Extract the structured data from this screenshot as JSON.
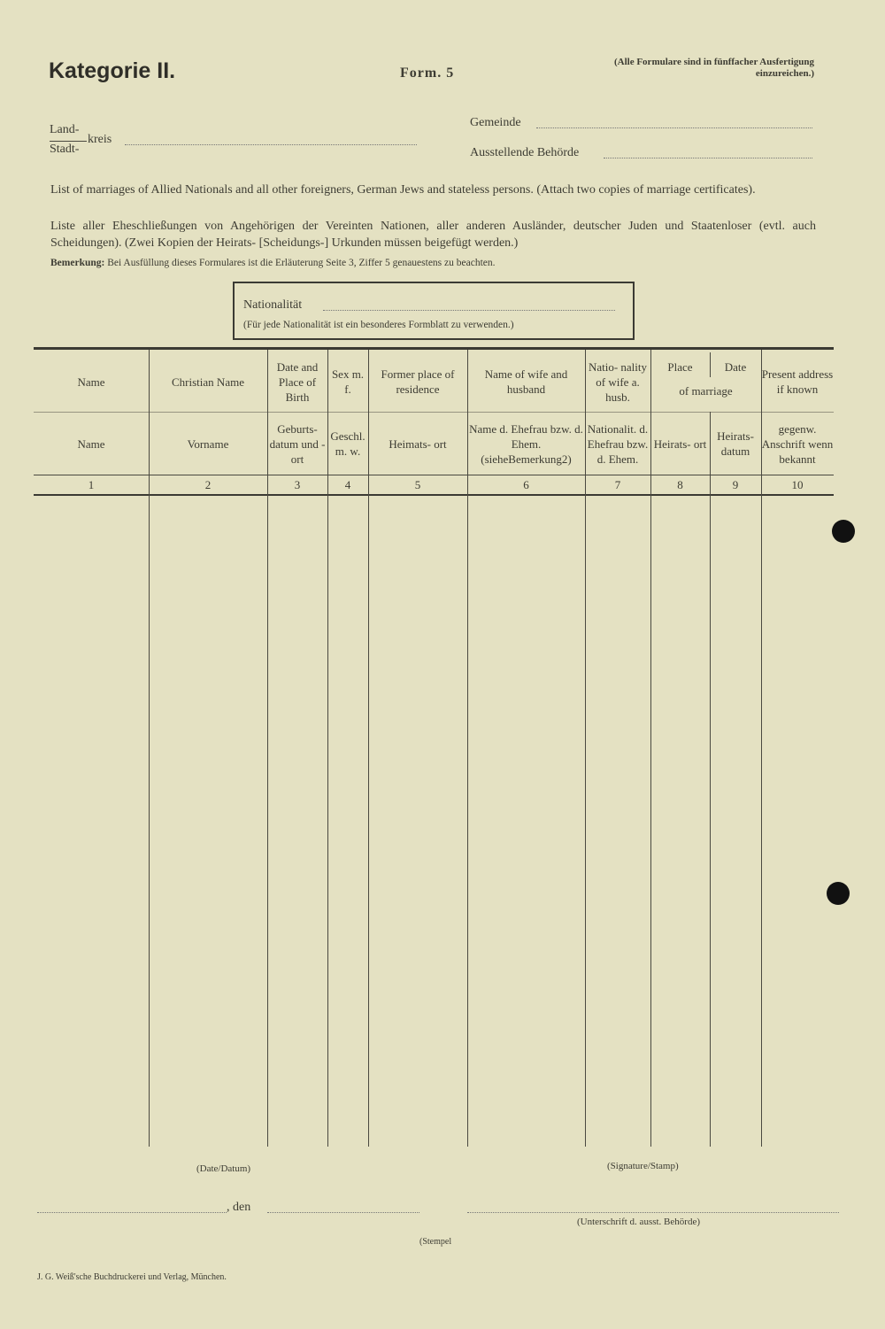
{
  "header": {
    "title": "Kategorie II.",
    "form": "Form. 5",
    "note": "(Alle Formulare sind in fünffacher Ausfertigung einzureichen.)",
    "land": "Land-",
    "stadt": "Stadt-",
    "kreis": "kreis",
    "gemeinde": "Gemeinde",
    "behoerde": "Ausstellende Behörde"
  },
  "intro": {
    "english": "List of marriages of Allied Nationals and all other foreigners, German Jews and stateless persons. (Attach two copies of marriage certificates).",
    "german": "Liste aller Eheschließungen von Angehörigen der Vereinten Nationen, aller anderen Ausländer, deutscher Juden und Staatenloser (evtl. auch Scheidungen). (Zwei Kopien der Heirats- [Scheidungs-] Urkunden müssen beigefügt werden.)",
    "bemerkung_label": "Bemerkung:",
    "bemerkung": "Bei Ausfüllung dieses Formulares ist die Erläuterung Seite 3, Ziffer 5 genauestens zu beachten."
  },
  "nationality_box": {
    "label": "Nationalität",
    "note": "(Für jede Nationalität ist ein besonderes Formblatt zu verwenden.)"
  },
  "table": {
    "columns": [
      {
        "en": "Name",
        "de": "Name",
        "num": "1"
      },
      {
        "en": "Christian Name",
        "de": "Vorname",
        "num": "2"
      },
      {
        "en": "Date and Place of Birth",
        "de": "Geburts- datum und -ort",
        "num": "3"
      },
      {
        "en": "Sex m. f.",
        "de": "Geschl. m. w.",
        "num": "4"
      },
      {
        "en": "Former place of residence",
        "de": "Heimats- ort",
        "num": "5"
      },
      {
        "en": "Name of wife and husband",
        "de": "Name d. Ehefrau bzw. d. Ehem. (sieheBemerkung2)",
        "num": "6"
      },
      {
        "en": "Natio- nality of wife a. husb.",
        "de": "Nationalit. d. Ehefrau bzw. d. Ehem.",
        "num": "7"
      },
      {
        "en": "Place",
        "de": "Heirats- ort",
        "num": "8"
      },
      {
        "en": "Date",
        "de": "Heirats- datum",
        "num": "9"
      },
      {
        "en": "Present address if known",
        "de": "gegenw. Anschrift wenn bekannt",
        "num": "10"
      }
    ],
    "of_marriage": "of marriage"
  },
  "footer": {
    "date_label": "(Date/Datum)",
    "signature_label": "(Signature/Stamp)",
    "den": ", den",
    "unterschrift": "(Unterschrift d. ausst. Behörde)",
    "stempel": "(Stempel",
    "printer": "J. G. Weiß'sche Buchdruckerei und Verlag, München."
  }
}
